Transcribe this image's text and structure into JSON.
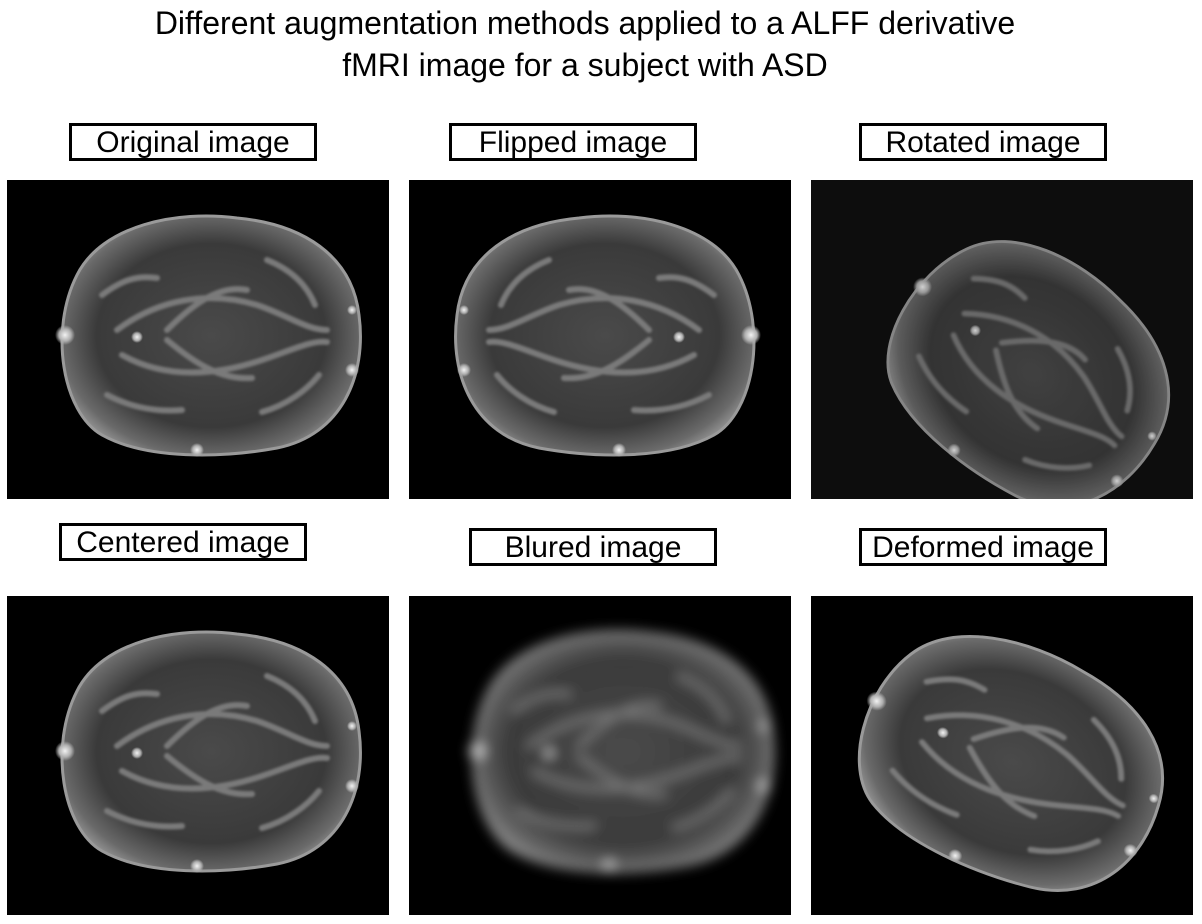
{
  "figure": {
    "title_line1": "Different augmentation methods applied to a ALFF derivative",
    "title_line2": "fMRI image for a subject with ASD"
  },
  "panels": [
    {
      "key": "original",
      "label": "Original image",
      "transform": "none",
      "background": "#000000"
    },
    {
      "key": "flipped",
      "label": "Flipped image",
      "transform": "horizontal-flip",
      "background": "#000000"
    },
    {
      "key": "rotated",
      "label": "Rotated image",
      "transform": "rotation",
      "background": "#0d0d0d"
    },
    {
      "key": "centered",
      "label": "Centered image",
      "transform": "shift",
      "background": "#000000"
    },
    {
      "key": "blured",
      "label": "Blured image",
      "transform": "gaussian-blur",
      "background": "#000000"
    },
    {
      "key": "deformed",
      "label": "Deformed image",
      "transform": "elastic-deformation",
      "background": "#000000"
    }
  ]
}
